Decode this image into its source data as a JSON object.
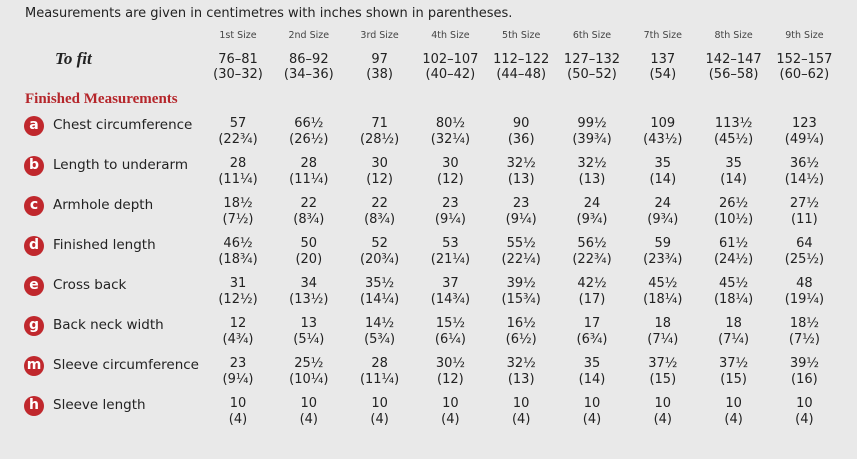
{
  "intro": "Measurements are given in centimetres with inches shown in parentheses.",
  "sizes": [
    "1st Size",
    "2nd Size",
    "3rd Size",
    "4th Size",
    "5th Size",
    "6th Size",
    "7th Size",
    "8th Size",
    "9th Size"
  ],
  "to_fit": {
    "label": "To fit",
    "cm": [
      "76–81",
      "86–92",
      "97",
      "102–107",
      "112–122",
      "127–132",
      "137",
      "142–147",
      "152–157"
    ],
    "inches": [
      "(30–32)",
      "(34–36)",
      "(38)",
      "(40–42)",
      "(44–48)",
      "(50–52)",
      "(54)",
      "(56–58)",
      "(60–62)"
    ]
  },
  "section_title": "Finished Measurements",
  "rows": [
    {
      "letter": "a",
      "label": "Chest circumference",
      "cm": [
        "57",
        "66½",
        "71",
        "80½",
        "90",
        "99½",
        "109",
        "113½",
        "123"
      ],
      "inches": [
        "(22¾)",
        "(26½)",
        "(28½)",
        "(32¼)",
        "(36)",
        "(39¾)",
        "(43½)",
        "(45½)",
        "(49¼)"
      ]
    },
    {
      "letter": "b",
      "label": "Length to underarm",
      "cm": [
        "28",
        "28",
        "30",
        "30",
        "32½",
        "32½",
        "35",
        "35",
        "36½"
      ],
      "inches": [
        "(11¼)",
        "(11¼)",
        "(12)",
        "(12)",
        "(13)",
        "(13)",
        "(14)",
        "(14)",
        "(14½)"
      ]
    },
    {
      "letter": "c",
      "label": "Armhole depth",
      "cm": [
        "18½",
        "22",
        "22",
        "23",
        "23",
        "24",
        "24",
        "26½",
        "27½"
      ],
      "inches": [
        "(7½)",
        "(8¾)",
        "(8¾)",
        "(9¼)",
        "(9¼)",
        "(9¾)",
        "(9¾)",
        "(10½)",
        "(11)"
      ]
    },
    {
      "letter": "d",
      "label": "Finished length",
      "cm": [
        "46½",
        "50",
        "52",
        "53",
        "55½",
        "56½",
        "59",
        "61½",
        "64"
      ],
      "inches": [
        "(18¾)",
        "(20)",
        "(20¾)",
        "(21¼)",
        "(22¼)",
        "(22¾)",
        "(23¾)",
        "(24½)",
        "(25½)"
      ]
    },
    {
      "letter": "e",
      "label": "Cross back",
      "cm": [
        "31",
        "34",
        "35½",
        "37",
        "39½",
        "42½",
        "45½",
        "45½",
        "48"
      ],
      "inches": [
        "(12½)",
        "(13½)",
        "(14¼)",
        "(14¾)",
        "(15¾)",
        "(17)",
        "(18¼)",
        "(18¼)",
        "(19¼)"
      ]
    },
    {
      "letter": "g",
      "label": "Back neck width",
      "cm": [
        "12",
        "13",
        "14½",
        "15½",
        "16½",
        "17",
        "18",
        "18",
        "18½"
      ],
      "inches": [
        "(4¾)",
        "(5¼)",
        "(5¾)",
        "(6¼)",
        "(6½)",
        "(6¾)",
        "(7¼)",
        "(7¼)",
        "(7½)"
      ]
    },
    {
      "letter": "m",
      "label": "Sleeve circumference",
      "cm": [
        "23",
        "25½",
        "28",
        "30½",
        "32½",
        "35",
        "37½",
        "37½",
        "39½"
      ],
      "inches": [
        "(9¼)",
        "(10¼)",
        "(11¼)",
        "(12)",
        "(13)",
        "(14)",
        "(15)",
        "(15)",
        "(16)"
      ]
    },
    {
      "letter": "h",
      "label": "Sleeve length",
      "cm": [
        "10",
        "10",
        "10",
        "10",
        "10",
        "10",
        "10",
        "10",
        "10"
      ],
      "inches": [
        "(4)",
        "(4)",
        "(4)",
        "(4)",
        "(4)",
        "(4)",
        "(4)",
        "(4)",
        "(4)"
      ]
    }
  ]
}
